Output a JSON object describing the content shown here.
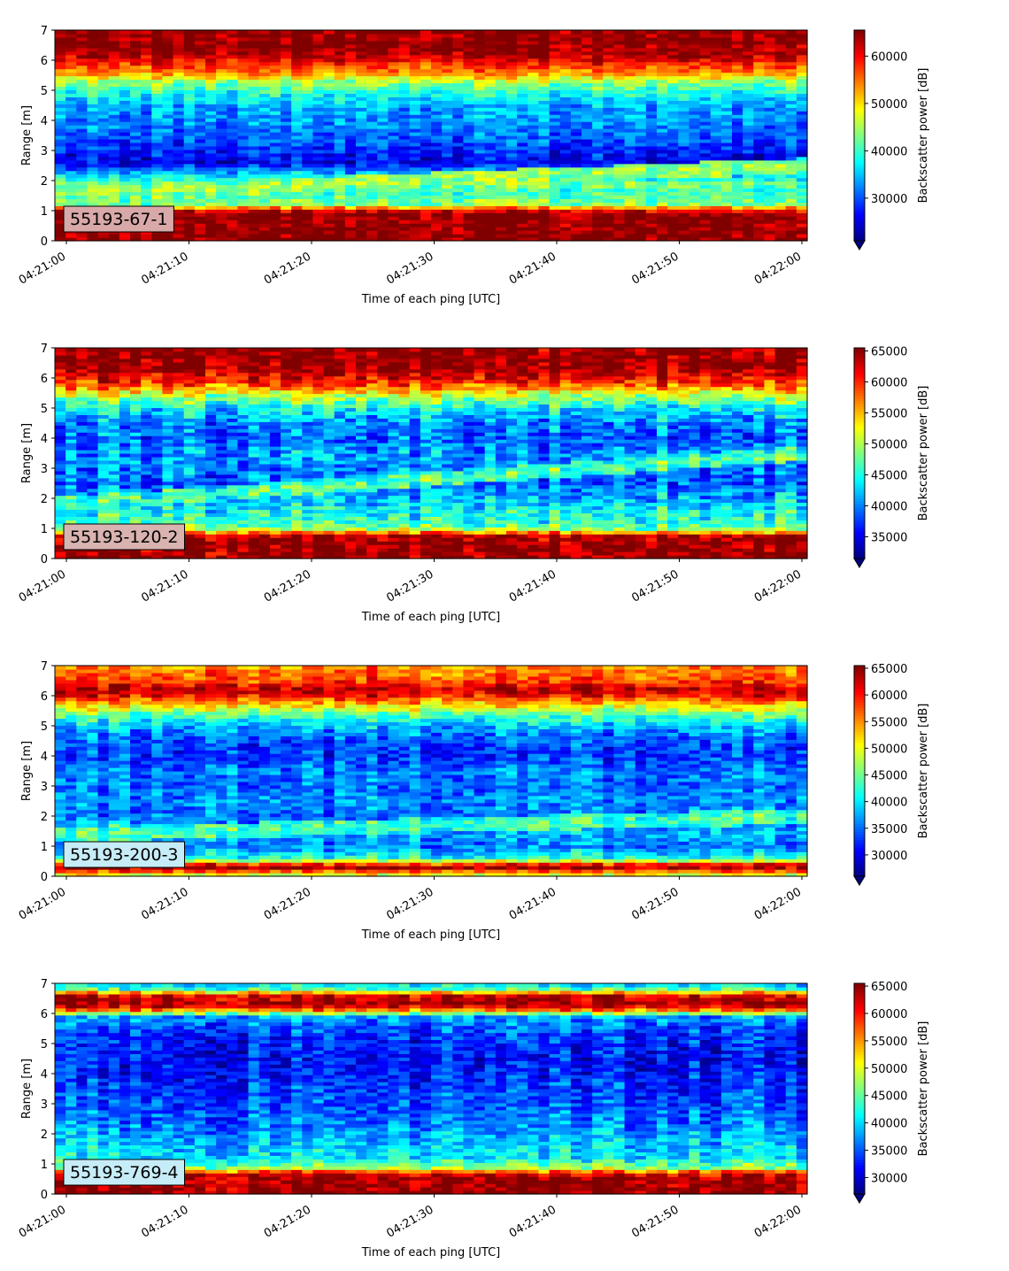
{
  "figure": {
    "colormap": "jet",
    "background": "#ffffff"
  },
  "chart_data": [
    {
      "type": "heatmap",
      "label": "55193-67-1",
      "label_box_color": "#d9a8a8",
      "xlabel": "Time of each ping [UTC]",
      "ylabel": "Range [m]",
      "xticks": [
        "04:21:00",
        "04:21:10",
        "04:21:20",
        "04:21:30",
        "04:21:40",
        "04:21:50",
        "04:22:00"
      ],
      "ylim": [
        0,
        7
      ],
      "yticks": [
        0,
        1,
        2,
        3,
        4,
        5,
        6,
        7
      ],
      "colorbar": {
        "label": "Backscatter power [dB]",
        "min": 21000,
        "max": 65500,
        "ticks": [
          30000,
          40000,
          50000,
          60000
        ],
        "extend": "min"
      },
      "profile": [
        {
          "r": 0.2,
          "v": 65000
        },
        {
          "r": 0.5,
          "v": 65000
        },
        {
          "r": 0.9,
          "v": 65000
        },
        {
          "r": 1.05,
          "v": 60000
        },
        {
          "r": 1.2,
          "v": 44000
        },
        {
          "r": 1.6,
          "v": 40000
        },
        {
          "r": 1.9,
          "v": 43000
        },
        {
          "r": 2.2,
          "v": 36000
        },
        {
          "r": 2.6,
          "v": 26000
        },
        {
          "r": 3.0,
          "v": 28000
        },
        {
          "r": 3.5,
          "v": 31000
        },
        {
          "r": 4.0,
          "v": 33000
        },
        {
          "r": 4.5,
          "v": 34000
        },
        {
          "r": 5.0,
          "v": 40000
        },
        {
          "r": 5.3,
          "v": 45000
        },
        {
          "r": 5.6,
          "v": 54000
        },
        {
          "r": 5.9,
          "v": 59000
        },
        {
          "r": 6.2,
          "v": 64000
        },
        {
          "r": 6.6,
          "v": 65000
        },
        {
          "r": 7.0,
          "v": 65000
        }
      ],
      "band": {
        "r_start": 1.55,
        "r_end": 2.5,
        "v": 45000
      }
    },
    {
      "type": "heatmap",
      "label": "55193-120-2",
      "label_box_color": "#d9b3b0",
      "xlabel": "Time of each ping [UTC]",
      "ylabel": "Range [m]",
      "xticks": [
        "04:21:00",
        "04:21:10",
        "04:21:20",
        "04:21:30",
        "04:21:40",
        "04:21:50",
        "04:22:00"
      ],
      "ylim": [
        0,
        7
      ],
      "yticks": [
        0,
        1,
        2,
        3,
        4,
        5,
        6,
        7
      ],
      "colorbar": {
        "label": "Backscatter power [dB]",
        "min": 31500,
        "max": 65500,
        "ticks": [
          35000,
          40000,
          45000,
          50000,
          55000,
          60000,
          65000
        ],
        "extend": "min"
      },
      "profile": [
        {
          "r": 0.2,
          "v": 65000
        },
        {
          "r": 0.5,
          "v": 65000
        },
        {
          "r": 0.8,
          "v": 64000
        },
        {
          "r": 0.95,
          "v": 50000
        },
        {
          "r": 1.2,
          "v": 46000
        },
        {
          "r": 1.5,
          "v": 45000
        },
        {
          "r": 2.0,
          "v": 42000
        },
        {
          "r": 2.5,
          "v": 39000
        },
        {
          "r": 3.0,
          "v": 40000
        },
        {
          "r": 3.5,
          "v": 41000
        },
        {
          "r": 4.0,
          "v": 39000
        },
        {
          "r": 4.5,
          "v": 40000
        },
        {
          "r": 5.0,
          "v": 44000
        },
        {
          "r": 5.4,
          "v": 50000
        },
        {
          "r": 5.7,
          "v": 57000
        },
        {
          "r": 6.0,
          "v": 62000
        },
        {
          "r": 6.4,
          "v": 65000
        },
        {
          "r": 7.0,
          "v": 65000
        }
      ],
      "band": {
        "r_start": 1.8,
        "r_end": 3.5,
        "v": 47000
      }
    },
    {
      "type": "heatmap",
      "label": "55193-200-3",
      "label_box_color": "#c6ecf7",
      "xlabel": "Time of each ping [UTC]",
      "ylabel": "Range [m]",
      "xticks": [
        "04:21:00",
        "04:21:10",
        "04:21:20",
        "04:21:30",
        "04:21:40",
        "04:21:50",
        "04:22:00"
      ],
      "ylim": [
        0,
        7
      ],
      "yticks": [
        0,
        1,
        2,
        3,
        4,
        5,
        6,
        7
      ],
      "colorbar": {
        "label": "Backscatter power [dB]",
        "min": 26000,
        "max": 65500,
        "ticks": [
          30000,
          35000,
          40000,
          45000,
          50000,
          55000,
          60000,
          65000
        ],
        "extend": "min"
      },
      "profile": [
        {
          "r": 0.1,
          "v": 50000
        },
        {
          "r": 0.25,
          "v": 65000
        },
        {
          "r": 0.4,
          "v": 60000
        },
        {
          "r": 0.6,
          "v": 42000
        },
        {
          "r": 1.0,
          "v": 36000
        },
        {
          "r": 1.5,
          "v": 38000
        },
        {
          "r": 2.0,
          "v": 35000
        },
        {
          "r": 2.5,
          "v": 37000
        },
        {
          "r": 3.0,
          "v": 35000
        },
        {
          "r": 3.5,
          "v": 36000
        },
        {
          "r": 4.0,
          "v": 33000
        },
        {
          "r": 4.5,
          "v": 34000
        },
        {
          "r": 5.0,
          "v": 38000
        },
        {
          "r": 5.4,
          "v": 45000
        },
        {
          "r": 5.7,
          "v": 52000
        },
        {
          "r": 6.0,
          "v": 60000
        },
        {
          "r": 6.2,
          "v": 64000
        },
        {
          "r": 6.5,
          "v": 58000
        },
        {
          "r": 7.0,
          "v": 55000
        }
      ],
      "band": {
        "r_start": 1.4,
        "r_end": 2.0,
        "v": 44000
      }
    },
    {
      "type": "heatmap",
      "label": "55193-769-4",
      "label_box_color": "#c6ecf7",
      "xlabel": "Time of each ping [UTC]",
      "ylabel": "Range [m]",
      "xticks": [
        "04:21:00",
        "04:21:10",
        "04:21:20",
        "04:21:30",
        "04:21:40",
        "04:21:50",
        "04:22:00"
      ],
      "ylim": [
        0,
        7
      ],
      "yticks": [
        0,
        1,
        2,
        3,
        4,
        5,
        6,
        7
      ],
      "colorbar": {
        "label": "Backscatter power [dB]",
        "min": 27000,
        "max": 65500,
        "ticks": [
          30000,
          35000,
          40000,
          45000,
          50000,
          55000,
          60000,
          65000
        ],
        "extend": "min"
      },
      "profile": [
        {
          "r": 0.2,
          "v": 65000
        },
        {
          "r": 0.5,
          "v": 65000
        },
        {
          "r": 0.7,
          "v": 62000
        },
        {
          "r": 0.85,
          "v": 48000
        },
        {
          "r": 1.2,
          "v": 41000
        },
        {
          "r": 1.6,
          "v": 40000
        },
        {
          "r": 2.0,
          "v": 38000
        },
        {
          "r": 2.5,
          "v": 36000
        },
        {
          "r": 3.0,
          "v": 35000
        },
        {
          "r": 3.5,
          "v": 34000
        },
        {
          "r": 4.0,
          "v": 33000
        },
        {
          "r": 4.5,
          "v": 32000
        },
        {
          "r": 5.0,
          "v": 33000
        },
        {
          "r": 5.5,
          "v": 35000
        },
        {
          "r": 5.9,
          "v": 38000
        },
        {
          "r": 6.1,
          "v": 55000
        },
        {
          "r": 6.3,
          "v": 65000
        },
        {
          "r": 6.6,
          "v": 62000
        },
        {
          "r": 6.85,
          "v": 42000
        },
        {
          "r": 7.0,
          "v": 40000
        }
      ]
    }
  ]
}
